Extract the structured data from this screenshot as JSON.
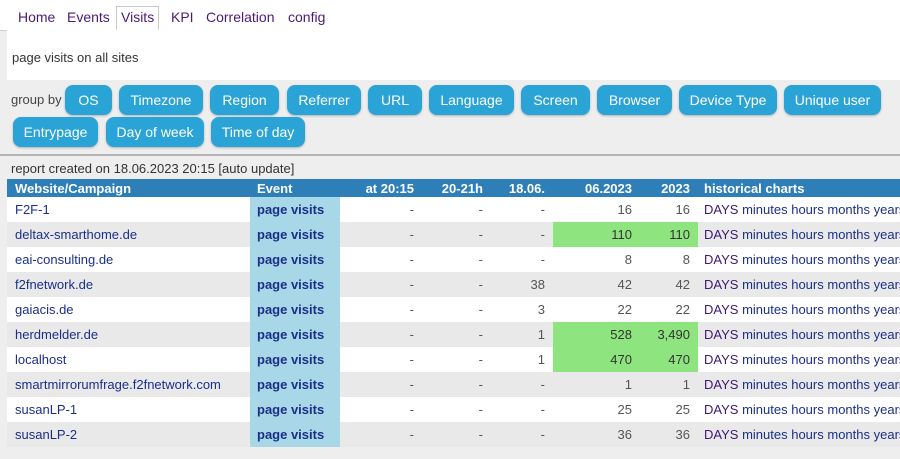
{
  "nav": {
    "tabs": [
      "Home",
      "Events",
      "Visits",
      "KPI",
      "Correlation",
      "config"
    ],
    "active": "Visits"
  },
  "description": "page visits on all sites",
  "groupby": {
    "label": "group by",
    "buttons": [
      "OS",
      "Timezone",
      "Region",
      "Referrer",
      "URL",
      "Language",
      "Screen",
      "Browser",
      "Device Type",
      "Unique user",
      "Entrypage",
      "Day of week",
      "Time of day"
    ]
  },
  "report": "report created on 18.06.2023 20:15 [auto update]",
  "table": {
    "headers": [
      "Website/Campaign",
      "Event",
      "at 20:15",
      "20-21h",
      "18.06.",
      "06.2023",
      "2023",
      "historical charts"
    ],
    "links": [
      "DAYS",
      "minutes",
      "hours",
      "months",
      "years"
    ],
    "rows": [
      {
        "site": "F2F-1",
        "event": "page visits",
        "at": "-",
        "hour": "-",
        "day": "-",
        "month": "16",
        "year": "16",
        "highlight": false
      },
      {
        "site": "deltax-smarthome.de",
        "event": "page visits",
        "at": "-",
        "hour": "-",
        "day": "-",
        "month": "110",
        "year": "110",
        "highlight": true
      },
      {
        "site": "eai-consulting.de",
        "event": "page visits",
        "at": "-",
        "hour": "-",
        "day": "-",
        "month": "8",
        "year": "8",
        "highlight": false
      },
      {
        "site": "f2fnetwork.de",
        "event": "page visits",
        "at": "-",
        "hour": "-",
        "day": "38",
        "month": "42",
        "year": "42",
        "highlight": false
      },
      {
        "site": "gaiacis.de",
        "event": "page visits",
        "at": "-",
        "hour": "-",
        "day": "3",
        "month": "22",
        "year": "22",
        "highlight": false
      },
      {
        "site": "herdmelder.de",
        "event": "page visits",
        "at": "-",
        "hour": "-",
        "day": "1",
        "month": "528",
        "year": "3,490",
        "highlight": true
      },
      {
        "site": "localhost",
        "event": "page visits",
        "at": "-",
        "hour": "-",
        "day": "1",
        "month": "470",
        "year": "470",
        "highlight": true
      },
      {
        "site": "smartmirrorumfrage.f2fnetwork.com",
        "event": "page visits",
        "at": "-",
        "hour": "-",
        "day": "-",
        "month": "1",
        "year": "1",
        "highlight": false
      },
      {
        "site": "susanLP-1",
        "event": "page visits",
        "at": "-",
        "hour": "-",
        "day": "-",
        "month": "25",
        "year": "25",
        "highlight": false
      },
      {
        "site": "susanLP-2",
        "event": "page visits",
        "at": "-",
        "hour": "-",
        "day": "-",
        "month": "36",
        "year": "36",
        "highlight": false
      }
    ]
  },
  "colors": {
    "accent": "#2aa3d6",
    "header": "#2e7eb8",
    "event_cell": "#a8d7e7",
    "highlight": "#8ee57f",
    "link": "#1b2f8a",
    "nav_text": "#4b1a78"
  }
}
